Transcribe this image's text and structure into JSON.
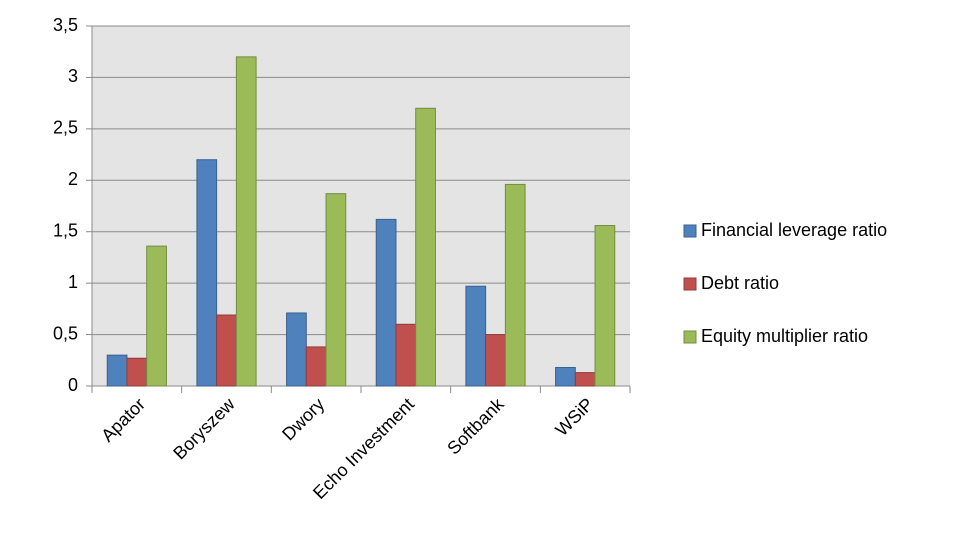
{
  "chart_data": {
    "type": "bar",
    "categories": [
      "Apator",
      "Boryszew",
      "Dwory",
      "Echo Investment",
      "Softbank",
      "WSiP"
    ],
    "series": [
      {
        "name": "Financial leverage ratio",
        "color": "#4f81bd",
        "values": [
          0.3,
          2.2,
          0.71,
          1.62,
          0.97,
          0.18
        ]
      },
      {
        "name": "Debt ratio",
        "color": "#c0504d",
        "values": [
          0.27,
          0.69,
          0.38,
          0.6,
          0.5,
          0.13
        ]
      },
      {
        "name": "Equity multiplier ratio",
        "color": "#9bbb59",
        "values": [
          1.36,
          3.2,
          1.87,
          2.7,
          1.96,
          1.56
        ]
      }
    ],
    "ylim": [
      0,
      3.5
    ],
    "yticks": [
      0,
      {
        "value": 0.5,
        "label": "0,5"
      },
      1,
      {
        "value": 1.5,
        "label": "1,5"
      },
      2,
      {
        "value": 2.5,
        "label": "2,5"
      },
      3,
      {
        "value": 3.5,
        "label": "3,5"
      }
    ],
    "grid": true,
    "legend": "right"
  }
}
